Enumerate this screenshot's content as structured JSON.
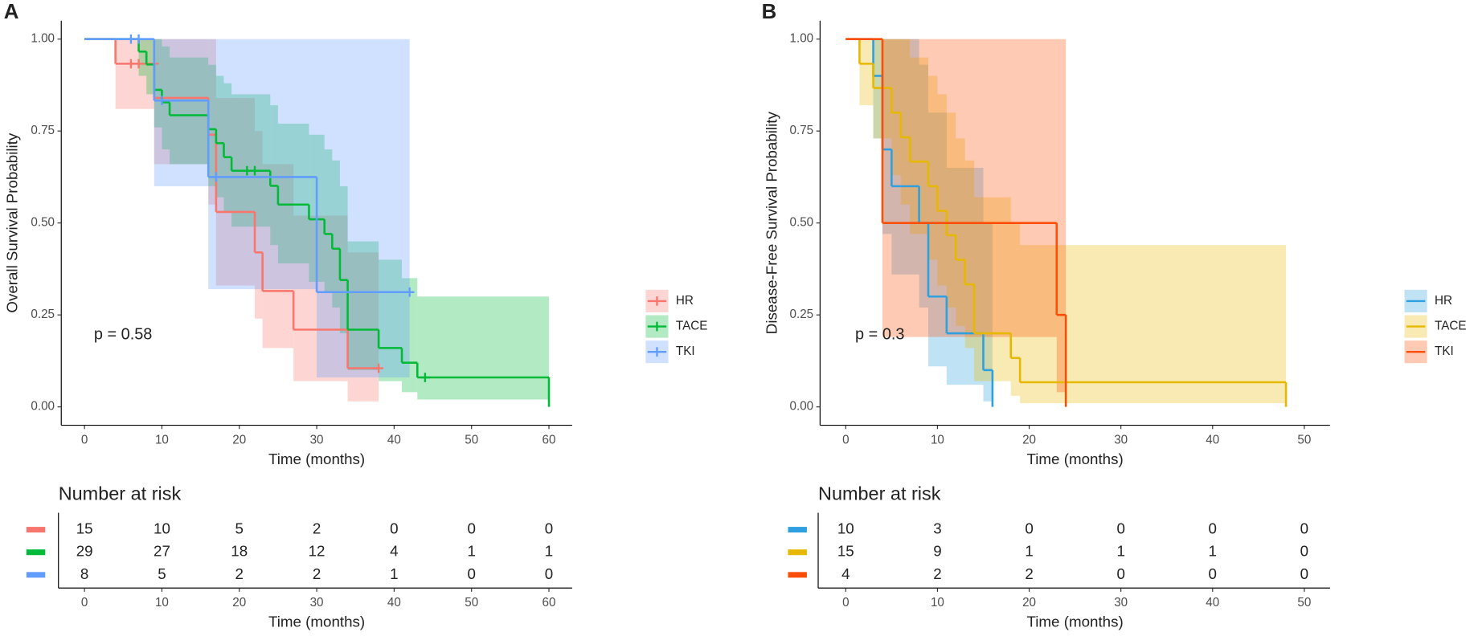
{
  "chart_data": [
    {
      "type": "kaplan-meier",
      "panel": "A",
      "xlabel": "Time (months)",
      "ylabel": "Overall Survival Probability",
      "annotation": "p = 0.58",
      "xlim": [
        -3,
        63
      ],
      "xticks": [
        0,
        10,
        20,
        30,
        40,
        50,
        60
      ],
      "ylim": [
        -0.05,
        1.05
      ],
      "yticks": [
        {
          "value": 0,
          "label": "0.00"
        },
        {
          "value": 0.25,
          "label": "0.25"
        },
        {
          "value": 0.5,
          "label": "0.50"
        },
        {
          "value": 0.75,
          "label": "0.75"
        },
        {
          "value": 1,
          "label": "1.00"
        }
      ],
      "series": [
        {
          "name": "HR",
          "color": "#F8766D",
          "x": [
            0,
            4,
            9,
            16,
            17,
            22,
            23,
            27,
            34,
            38
          ],
          "values": [
            1,
            0.933,
            0.84,
            0.74,
            0.53,
            0.42,
            0.315,
            0.21,
            0.105,
            0.105
          ],
          "lower": [
            1,
            0.81,
            0.66,
            0.55,
            0.33,
            0.24,
            0.16,
            0.07,
            0.015,
            0.015
          ],
          "upper": [
            1,
            1,
            1,
            1,
            0.84,
            0.75,
            0.66,
            0.52,
            0.42,
            0.42
          ],
          "censor_x": [
            6,
            7,
            9,
            38
          ],
          "censor_y": [
            0.933,
            0.933,
            0.933,
            0.105
          ],
          "at_risk": [
            15,
            10,
            5,
            2,
            0,
            0,
            0
          ]
        },
        {
          "name": "TACE",
          "color": "#00BA38",
          "x": [
            0,
            7,
            8,
            9,
            10,
            11,
            16,
            17,
            18,
            19,
            24,
            25,
            29,
            31,
            32,
            33,
            34,
            38,
            41,
            43,
            60
          ],
          "values": [
            1,
            0.966,
            0.931,
            0.862,
            0.828,
            0.793,
            0.755,
            0.717,
            0.679,
            0.642,
            0.601,
            0.55,
            0.51,
            0.47,
            0.43,
            0.345,
            0.21,
            0.16,
            0.12,
            0.08,
            0
          ],
          "lower": [
            1,
            0.9,
            0.85,
            0.76,
            0.7,
            0.66,
            0.6,
            0.57,
            0.53,
            0.49,
            0.44,
            0.39,
            0.34,
            0.31,
            0.27,
            0.2,
            0.1,
            0.07,
            0.04,
            0.02,
            0
          ],
          "upper": [
            1,
            1,
            1,
            1,
            0.98,
            0.95,
            0.93,
            0.9,
            0.88,
            0.85,
            0.82,
            0.77,
            0.74,
            0.7,
            0.67,
            0.6,
            0.45,
            0.4,
            0.35,
            0.3,
            0
          ],
          "censor_x": [
            21,
            22,
            44
          ],
          "censor_y": [
            0.642,
            0.642,
            0.08
          ],
          "at_risk": [
            29,
            27,
            18,
            12,
            4,
            1,
            1
          ]
        },
        {
          "name": "TKI",
          "color": "#619CFF",
          "x": [
            0,
            9,
            16,
            30,
            42
          ],
          "values": [
            1,
            0.833,
            0.625,
            0.312,
            0.312
          ],
          "lower": [
            1,
            0.6,
            0.32,
            0.08,
            0.08
          ],
          "upper": [
            1,
            1,
            1,
            1,
            1
          ],
          "censor_x": [
            6,
            7,
            10,
            17,
            42
          ],
          "censor_y": [
            1,
            1,
            0.833,
            0.625,
            0.312
          ],
          "at_risk": [
            8,
            5,
            2,
            2,
            1,
            0,
            0
          ]
        }
      ],
      "risk_title": "Number at risk",
      "risk_times": [
        0,
        10,
        20,
        30,
        40,
        50,
        60
      ],
      "risk_xlabel": "Time (months)"
    },
    {
      "type": "kaplan-meier",
      "panel": "B",
      "xlabel": "Time (months)",
      "ylabel": "Disease-Free Survival Probability",
      "annotation": "p = 0.3",
      "xlim": [
        -2.8,
        52.8
      ],
      "xticks": [
        0,
        10,
        20,
        30,
        40,
        50
      ],
      "ylim": [
        -0.05,
        1.05
      ],
      "yticks": [
        {
          "value": 0,
          "label": "0.00"
        },
        {
          "value": 0.25,
          "label": "0.25"
        },
        {
          "value": 0.5,
          "label": "0.50"
        },
        {
          "value": 0.75,
          "label": "0.75"
        },
        {
          "value": 1,
          "label": "1.00"
        }
      ],
      "series": [
        {
          "name": "HR",
          "color": "#2E9FDF",
          "x": [
            0,
            3,
            4,
            5,
            8,
            9,
            11,
            15,
            16
          ],
          "values": [
            1,
            0.9,
            0.7,
            0.6,
            0.5,
            0.3,
            0.2,
            0.1,
            0
          ],
          "lower": [
            1,
            0.73,
            0.47,
            0.36,
            0.27,
            0.11,
            0.06,
            0.015,
            0
          ],
          "upper": [
            1,
            1,
            1,
            1,
            0.93,
            0.8,
            0.65,
            0.5,
            0
          ],
          "censor_x": [],
          "censor_y": [],
          "at_risk": [
            10,
            3,
            0,
            0,
            0,
            0
          ]
        },
        {
          "name": "TACE",
          "color": "#E7B800",
          "x": [
            0,
            1.5,
            3,
            5,
            6,
            7,
            9,
            10,
            11,
            12,
            13,
            14,
            18,
            19,
            48
          ],
          "values": [
            1,
            0.933,
            0.867,
            0.8,
            0.733,
            0.667,
            0.6,
            0.533,
            0.467,
            0.4,
            0.333,
            0.2,
            0.133,
            0.067,
            0
          ],
          "lower": [
            1,
            0.82,
            0.73,
            0.63,
            0.55,
            0.47,
            0.4,
            0.33,
            0.27,
            0.22,
            0.16,
            0.07,
            0.03,
            0.01,
            0
          ],
          "upper": [
            1,
            1,
            1,
            1,
            1,
            0.95,
            0.9,
            0.85,
            0.8,
            0.73,
            0.67,
            0.57,
            0.5,
            0.44,
            0
          ],
          "censor_x": [],
          "censor_y": [],
          "at_risk": [
            15,
            9,
            1,
            1,
            1,
            0
          ]
        },
        {
          "name": "TKI",
          "color": "#FC4E07",
          "x": [
            0,
            4,
            23,
            24
          ],
          "values": [
            1,
            0.5,
            0.25,
            0
          ],
          "lower": [
            1,
            0.19,
            0.04,
            0
          ],
          "upper": [
            1,
            1,
            1,
            0
          ],
          "censor_x": [],
          "censor_y": [],
          "at_risk": [
            4,
            2,
            2,
            0,
            0,
            0
          ]
        }
      ],
      "risk_title": "Number at risk",
      "risk_times": [
        0,
        10,
        20,
        30,
        40,
        50
      ],
      "risk_xlabel": "Time (months)"
    }
  ]
}
